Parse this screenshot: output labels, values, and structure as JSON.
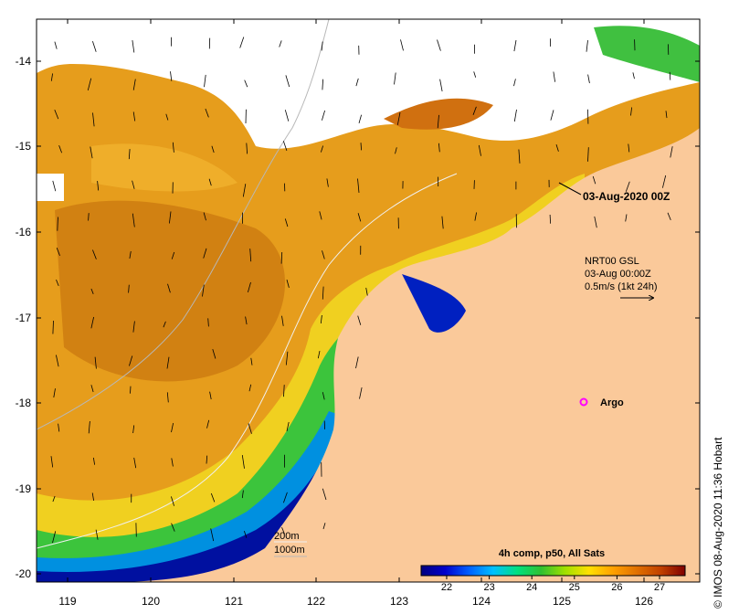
{
  "title_stamp": "03-Aug-2020 00Z",
  "current_annotation": {
    "line1": "NRT00 GSL",
    "line2": "03-Aug 00:00Z",
    "line3": "0.5m/s (1kt 24h)"
  },
  "argo_label": "Argo",
  "isobaths": {
    "shallow": "200m",
    "deep": "1000m"
  },
  "colorbar": {
    "title": "4h comp, p50, All Sats",
    "ticks": [
      "22",
      "23",
      "24",
      "25",
      "26",
      "27"
    ],
    "min": 21.4,
    "max": 27.6,
    "colors": [
      "#00007f",
      "#0000cc",
      "#0060ff",
      "#00c0ff",
      "#00e080",
      "#30c030",
      "#a0e000",
      "#ffe000",
      "#ffa000",
      "#e07000",
      "#c04000",
      "#800000"
    ]
  },
  "x_axis": {
    "ticks": [
      "119",
      "120",
      "121",
      "122",
      "123",
      "124",
      "125",
      "126"
    ]
  },
  "y_axis": {
    "ticks": [
      "-14",
      "-15",
      "-16",
      "-17",
      "-18",
      "-19",
      "-20"
    ]
  },
  "credit": "IMOS 08-Aug-2020 11:36 Hobart",
  "copyright_symbol": "©",
  "colors": {
    "land": "#fac99a",
    "warm_sst": "#e8a020",
    "cloud": "#ffffff",
    "argo": "#ff00ff"
  }
}
